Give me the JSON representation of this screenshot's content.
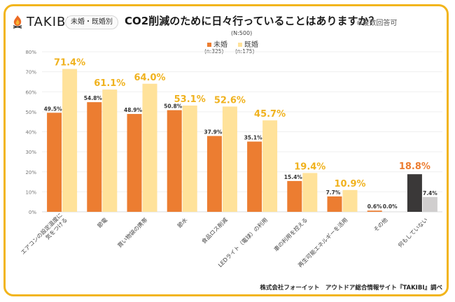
{
  "header": {
    "brand": "TAKIBI",
    "badge": "未婚・既婚別",
    "title": "CO2削減のために日々行っていることはありますか？",
    "note": "※複数回答可",
    "n_total": "(N:500)"
  },
  "footer": "株式会社フォーイット　アウトドア総合情報サイト『TAKIBI』調べ",
  "colors": {
    "frame": "#f2b51c",
    "unmarried": "#ec7d31",
    "married": "#ffe29a",
    "married_label": "#f0b21e",
    "none_unmarried": "#3a3838",
    "none_married": "#d0cece",
    "none_unmarried_label": "#ec7d31"
  },
  "chart_data": {
    "type": "bar",
    "title": "CO2削減のために日々行っていることはありますか？",
    "xlabel": "",
    "ylabel": "",
    "ylim": [
      0,
      80
    ],
    "yticks": [
      "0%",
      "10%",
      "20%",
      "30%",
      "40%",
      "50%",
      "60%",
      "70%",
      "80%"
    ],
    "grid": true,
    "legend_position": "top-center",
    "categories": [
      "エアコンの設定温度に気をつける",
      "節電",
      "買い物袋の携帯",
      "節水",
      "食品ロス削減",
      "LEDライト（電球）の利用",
      "車の利用を控える",
      "再生可能エネルギーを活用",
      "その他",
      "何もしていない"
    ],
    "category_lines": [
      [
        "エアコンの設定温度に",
        "気をつける"
      ],
      [
        "節電"
      ],
      [
        "買い物袋の携帯"
      ],
      [
        "節水"
      ],
      [
        "食品ロス削減"
      ],
      [
        "LEDライト（電球）の利用"
      ],
      [
        "車の利用を控える"
      ],
      [
        "再生可能エネルギーを活用"
      ],
      [
        "その他"
      ],
      [
        "何もしていない"
      ]
    ],
    "series": [
      {
        "name": "未婚",
        "n": "(n:325)",
        "values": [
          49.5,
          54.8,
          48.9,
          50.8,
          37.9,
          35.1,
          15.4,
          7.7,
          0.6,
          18.8
        ],
        "labels": [
          "49.5%",
          "54.8%",
          "48.9%",
          "50.8%",
          "37.9%",
          "35.1%",
          "15.4%",
          "7.7%",
          "0.6%",
          "18.8%"
        ]
      },
      {
        "name": "既婚",
        "n": "(n:175)",
        "values": [
          71.4,
          61.1,
          64.0,
          53.1,
          52.6,
          45.7,
          19.4,
          10.9,
          0.0,
          7.4
        ],
        "labels": [
          "71.4%",
          "61.1%",
          "64.0%",
          "53.1%",
          "52.6%",
          "45.7%",
          "19.4%",
          "10.9%",
          "0.0%",
          "7.4%"
        ]
      }
    ]
  }
}
